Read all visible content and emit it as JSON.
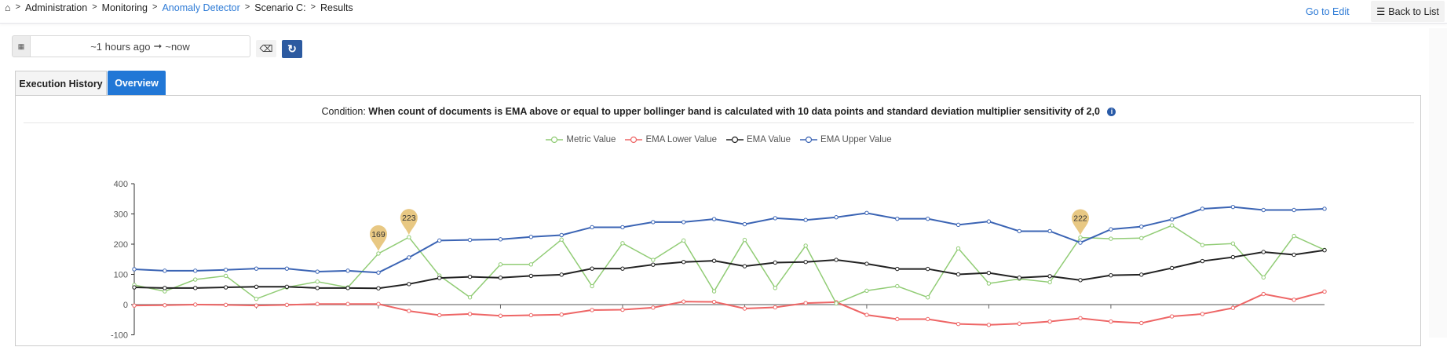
{
  "breadcrumb": {
    "home_icon": "home-icon",
    "items": [
      {
        "label": "Administration",
        "link": false
      },
      {
        "label": "Monitoring",
        "link": false
      },
      {
        "label": "Anomaly Detector",
        "link": true
      },
      {
        "label": "Scenario C:",
        "link": false
      },
      {
        "label": "Results",
        "link": false
      }
    ],
    "separator": ">"
  },
  "header": {
    "go_to_edit": "Go to Edit",
    "back_to_list": "Back to List"
  },
  "date_range": {
    "from": "~1 hours ago",
    "arrow": "➞",
    "to": "~now"
  },
  "tabs": [
    {
      "label": "Execution History",
      "active": false
    },
    {
      "label": "Overview",
      "active": true
    }
  ],
  "condition": {
    "label": "Condition:",
    "parts": [
      "When",
      "count of documents",
      "is",
      "EMA",
      "above or equal to upper bollinger band",
      "is calculated with",
      "10",
      "data points and standard deviation multiplier sensitivity of",
      "2,0"
    ]
  },
  "chart_data": {
    "type": "line",
    "ylim": [
      -100,
      400
    ],
    "yticks": [
      400,
      300,
      200,
      100,
      0,
      -100
    ],
    "grid": false,
    "legend_placement": "top-center",
    "series": [
      {
        "name": "Metric Value",
        "color": "#91cc75",
        "values": [
          65,
          44,
          83,
          95,
          19,
          57,
          76,
          57,
          169,
          223,
          96,
          24,
          133,
          133,
          215,
          61,
          203,
          148,
          212,
          44,
          214,
          55,
          195,
          4,
          46,
          61,
          24,
          186,
          70,
          85,
          74,
          222,
          218,
          220,
          262,
          197,
          202,
          90,
          227,
          181
        ]
      },
      {
        "name": "EMA Lower Value",
        "color": "#ee6666",
        "values": [
          -3,
          -2,
          0,
          -1,
          -3,
          -1,
          2,
          2,
          2,
          -21,
          -35,
          -31,
          -37,
          -35,
          -33,
          -18,
          -17,
          -10,
          10,
          9,
          -13,
          -9,
          5,
          8,
          -34,
          -48,
          -48,
          -64,
          -67,
          -63,
          -56,
          -45,
          -56,
          -61,
          -39,
          -31,
          -11,
          35,
          16,
          43
        ]
      },
      {
        "name": "EMA Value",
        "color": "#222222",
        "values": [
          57,
          55,
          55,
          57,
          59,
          59,
          55,
          55,
          54,
          68,
          88,
          92,
          89,
          95,
          99,
          119,
          119,
          132,
          141,
          145,
          127,
          139,
          141,
          148,
          135,
          118,
          118,
          100,
          105,
          89,
          94,
          81,
          97,
          99,
          121,
          144,
          157,
          174,
          165,
          180
        ]
      },
      {
        "name": "EMA Upper Value",
        "color": "#3b64b4",
        "values": [
          117,
          112,
          112,
          115,
          119,
          119,
          109,
          112,
          106,
          156,
          212,
          214,
          216,
          224,
          230,
          256,
          256,
          273,
          273,
          283,
          266,
          286,
          280,
          289,
          303,
          284,
          284,
          264,
          275,
          243,
          243,
          205,
          249,
          258,
          282,
          317,
          323,
          313,
          313,
          317
        ]
      }
    ],
    "anomaly_markers": [
      {
        "index": 8,
        "value": 169
      },
      {
        "index": 9,
        "value": 223
      },
      {
        "index": 31,
        "value": 222
      }
    ],
    "marker_color": "#e8c883"
  }
}
